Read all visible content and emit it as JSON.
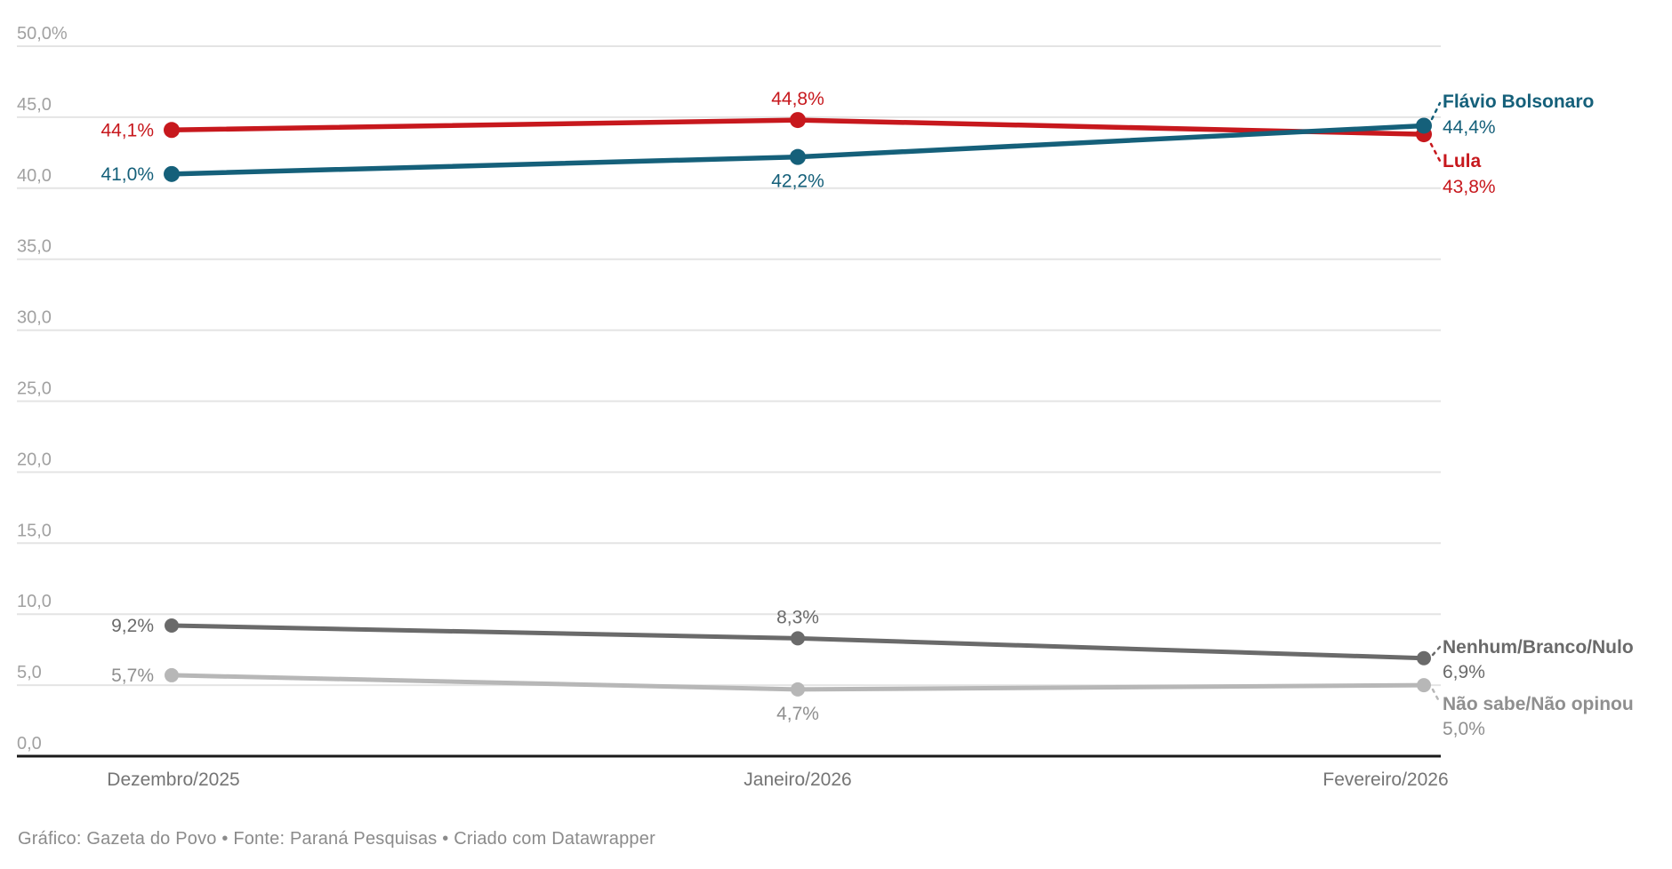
{
  "chart_data": {
    "type": "line",
    "x_categories": [
      "Dezembro/2025",
      "Janeiro/2026",
      "Fevereiro/2026"
    ],
    "y_axis": {
      "min": 0,
      "max": 50,
      "ticks": [
        {
          "value": 0,
          "label": "0,0"
        },
        {
          "value": 5,
          "label": "5,0"
        },
        {
          "value": 10,
          "label": "10,0"
        },
        {
          "value": 15,
          "label": "15,0"
        },
        {
          "value": 20,
          "label": "20,0"
        },
        {
          "value": 25,
          "label": "25,0"
        },
        {
          "value": 30,
          "label": "30,0"
        },
        {
          "value": 35,
          "label": "35,0"
        },
        {
          "value": 40,
          "label": "40,0"
        },
        {
          "value": 45,
          "label": "45,0"
        },
        {
          "value": 50,
          "label": "50,0%"
        }
      ]
    },
    "grid": true,
    "legend_position": "right-edge-labels",
    "series": [
      {
        "id": "flavio",
        "name": "Flávio Bolsonaro",
        "color": "#15607a",
        "label_color": "#15607a",
        "values": [
          41.0,
          42.2,
          44.4
        ],
        "value_labels": [
          "41,0%",
          "42,2%",
          "44,4%"
        ]
      },
      {
        "id": "lula",
        "name": "Lula",
        "color": "#c7181d",
        "label_color": "#c7181d",
        "values": [
          44.1,
          44.8,
          43.8
        ],
        "value_labels": [
          "44,1%",
          "44,8%",
          "43,8%"
        ]
      },
      {
        "id": "nenhum",
        "name": "Nenhum/Branco/Nulo",
        "color": "#6a6a6a",
        "label_color": "#6a6a6a",
        "values": [
          9.2,
          8.3,
          6.9
        ],
        "value_labels": [
          "9,2%",
          "8,3%",
          "6,9%"
        ]
      },
      {
        "id": "naosabe",
        "name": "Não sabe/Não opinou",
        "color": "#b7b7b7",
        "label_color": "#8f8f8f",
        "values": [
          5.7,
          4.7,
          5.0
        ],
        "value_labels": [
          "5,7%",
          "4,7%",
          "5,0%"
        ]
      }
    ]
  },
  "footer": {
    "text": "Gráfico: Gazeta do Povo • Fonte: Paraná Pesquisas • Criado com Datawrapper"
  },
  "colors": {
    "grid": "#e4e4e4",
    "axis": "#1a1a1a",
    "tick_label": "#a1a1a1",
    "x_label": "#757575",
    "footer": "#8b8b8b",
    "background": "#ffffff"
  }
}
